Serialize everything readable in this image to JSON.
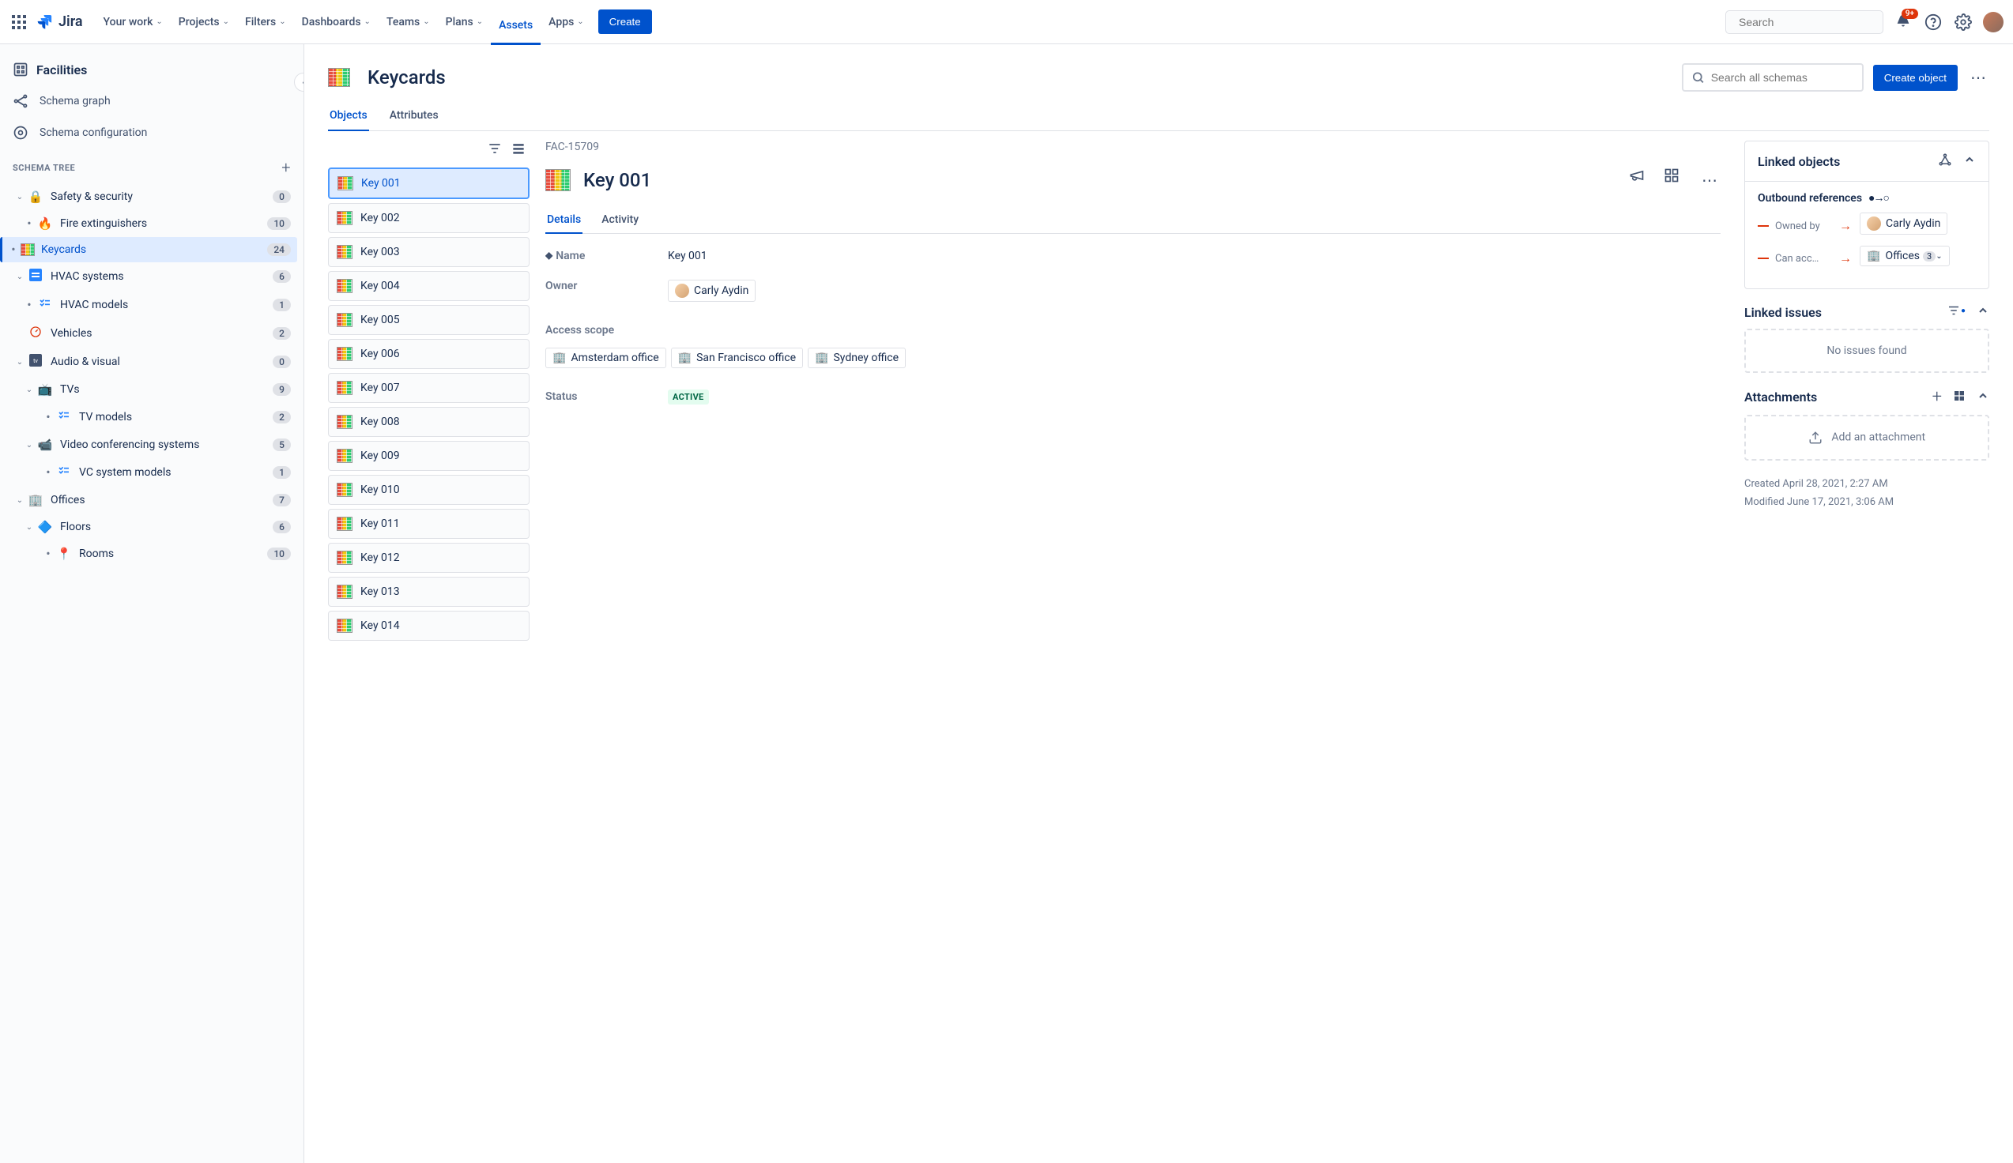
{
  "topnav": {
    "logo_text": "Jira",
    "items": [
      {
        "label": "Your work",
        "dropdown": true
      },
      {
        "label": "Projects",
        "dropdown": true
      },
      {
        "label": "Filters",
        "dropdown": true
      },
      {
        "label": "Dashboards",
        "dropdown": true
      },
      {
        "label": "Teams",
        "dropdown": true
      },
      {
        "label": "Plans",
        "dropdown": true
      },
      {
        "label": "Assets",
        "dropdown": false,
        "active": true
      },
      {
        "label": "Apps",
        "dropdown": true
      }
    ],
    "create_label": "Create",
    "search_placeholder": "Search",
    "notification_badge": "9+"
  },
  "sidebar": {
    "title": "Facilities",
    "links": [
      {
        "label": "Schema graph"
      },
      {
        "label": "Schema configuration"
      }
    ],
    "tree_header": "SCHEMA TREE",
    "tree": [
      {
        "label": "Safety & security",
        "count": "0",
        "emoji": "🔒",
        "level": 0,
        "expand": true,
        "chev_open": true
      },
      {
        "label": "Fire extinguishers",
        "count": "10",
        "emoji": "🔥",
        "level": 1,
        "bullet": true
      },
      {
        "label": "Keycards",
        "count": "24",
        "emoji": "",
        "level": 1,
        "bullet": true,
        "selected": true,
        "grid_icon": true
      },
      {
        "label": "HVAC systems",
        "count": "6",
        "emoji": "",
        "level": 0,
        "expand": true,
        "chev_open": true,
        "blue_icon": true
      },
      {
        "label": "HVAC models",
        "count": "1",
        "emoji": "",
        "level": 1,
        "bullet": true,
        "list_icon": true
      },
      {
        "label": "Vehicles",
        "count": "2",
        "emoji": "🚗",
        "level": 0,
        "gauge_icon": true
      },
      {
        "label": "Audio & visual",
        "count": "0",
        "emoji": "📺",
        "level": 0,
        "expand": true,
        "chev_open": true,
        "dark_icon": true
      },
      {
        "label": "TVs",
        "count": "9",
        "emoji": "📺",
        "level": 1,
        "expand": true,
        "chev_open": true
      },
      {
        "label": "TV models",
        "count": "2",
        "emoji": "",
        "level": 2,
        "bullet": true,
        "list_icon": true
      },
      {
        "label": "Video conferencing systems",
        "count": "5",
        "emoji": "📹",
        "level": 1,
        "expand": true,
        "chev_open": true
      },
      {
        "label": "VC system models",
        "count": "1",
        "emoji": "",
        "level": 2,
        "bullet": true,
        "list_icon": true
      },
      {
        "label": "Offices",
        "count": "7",
        "emoji": "🏢",
        "level": 0,
        "expand": true,
        "chev_open": true
      },
      {
        "label": "Floors",
        "count": "6",
        "emoji": "🔷",
        "level": 1,
        "expand": true,
        "chev_open": true
      },
      {
        "label": "Rooms",
        "count": "10",
        "emoji": "📍",
        "level": 2,
        "bullet": true
      }
    ]
  },
  "content": {
    "title": "Keycards",
    "schema_search_placeholder": "Search all schemas",
    "create_object_label": "Create object",
    "tabs": [
      {
        "label": "Objects",
        "active": true
      },
      {
        "label": "Attributes"
      }
    ],
    "object_list": [
      {
        "label": "Key 001",
        "selected": true
      },
      {
        "label": "Key 002"
      },
      {
        "label": "Key 003"
      },
      {
        "label": "Key 004"
      },
      {
        "label": "Key 005"
      },
      {
        "label": "Key 006"
      },
      {
        "label": "Key 007"
      },
      {
        "label": "Key 008"
      },
      {
        "label": "Key 009"
      },
      {
        "label": "Key 010"
      },
      {
        "label": "Key 011"
      },
      {
        "label": "Key 012"
      },
      {
        "label": "Key 013"
      },
      {
        "label": "Key 014"
      }
    ],
    "detail": {
      "object_id": "FAC-15709",
      "title": "Key 001",
      "tabs": [
        {
          "label": "Details",
          "active": true
        },
        {
          "label": "Activity"
        }
      ],
      "attributes": {
        "name_label": "Name",
        "name_value": "Key 001",
        "owner_label": "Owner",
        "owner_value": "Carly Aydin",
        "scope_label": "Access scope",
        "scope_values": [
          "Amsterdam office",
          "San Francisco office",
          "Sydney office"
        ],
        "status_label": "Status",
        "status_value": "ACTIVE"
      },
      "linked_objects": {
        "title": "Linked objects",
        "outbound_title": "Outbound references",
        "refs": [
          {
            "label": "Owned by",
            "target": "Carly Aydin",
            "avatar": true
          },
          {
            "label": "Can acc…",
            "target": "Offices",
            "count": "3",
            "office": true
          }
        ]
      },
      "linked_issues": {
        "title": "Linked issues",
        "empty": "No issues found"
      },
      "attachments": {
        "title": "Attachments",
        "empty": "Add an attachment"
      },
      "created": "Created April 28, 2021, 2:27 AM",
      "modified": "Modified June 17, 2021, 3:06 AM"
    }
  }
}
